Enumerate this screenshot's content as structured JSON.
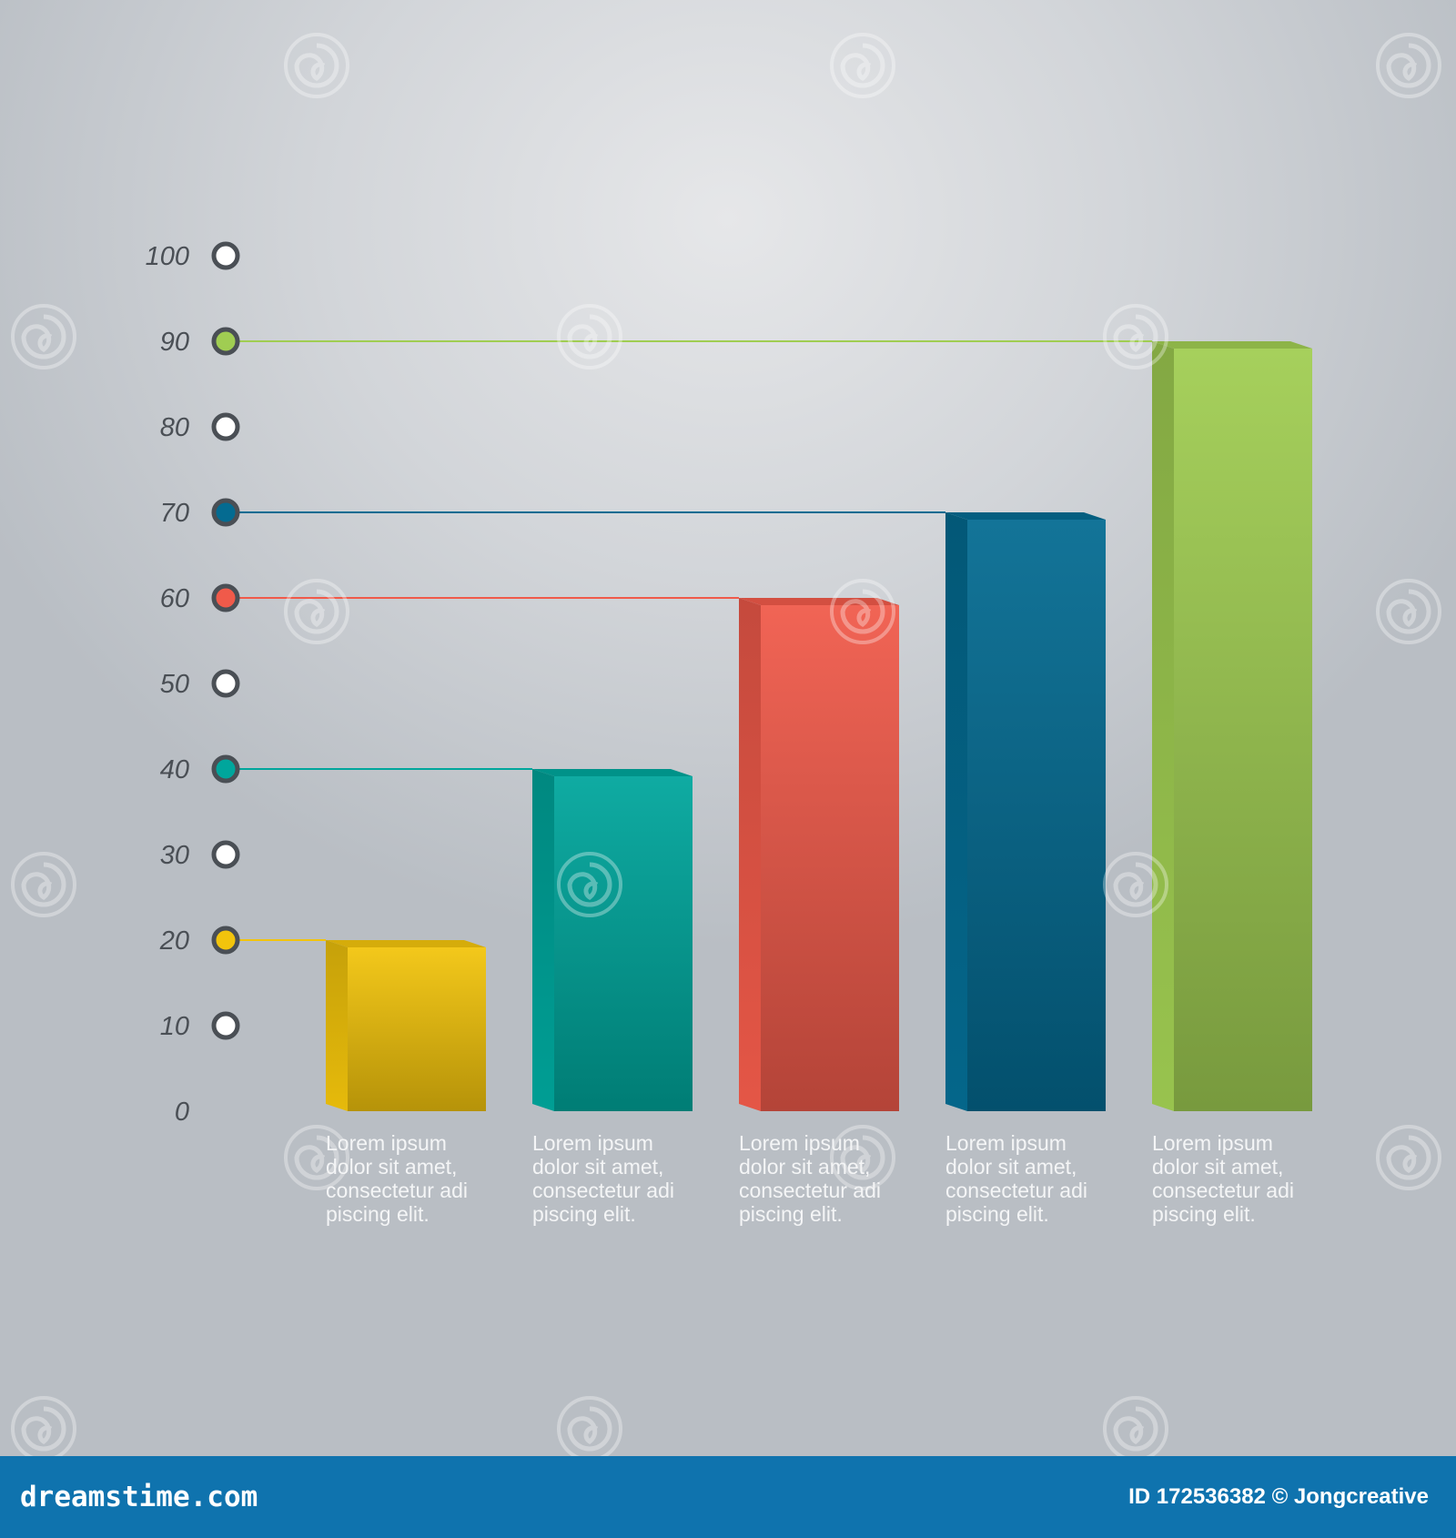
{
  "chart_data": {
    "type": "bar",
    "categories": [
      "Lorem ipsum dolor sit amet, consectetur adi piscing elit.",
      "Lorem ipsum dolor sit amet, consectetur adi piscing elit.",
      "Lorem ipsum dolor sit amet, consectetur adi piscing elit.",
      "Lorem ipsum dolor sit amet, consectetur adi piscing elit.",
      "Lorem ipsum dolor sit amet, consectetur adi piscing elit."
    ],
    "caption_lines": [
      [
        "Lorem ipsum",
        "dolor sit amet,",
        "consectetur adi",
        "piscing elit."
      ],
      [
        "Lorem ipsum",
        "dolor sit amet,",
        "consectetur adi",
        "piscing elit."
      ],
      [
        "Lorem ipsum",
        "dolor sit amet,",
        "consectetur adi",
        "piscing elit."
      ],
      [
        "Lorem ipsum",
        "dolor sit amet,",
        "consectetur adi",
        "piscing elit."
      ],
      [
        "Lorem ipsum",
        "dolor sit amet,",
        "consectetur adi",
        "piscing elit."
      ]
    ],
    "values": [
      20,
      40,
      60,
      70,
      90
    ],
    "colors": [
      "#f2c40c",
      "#00a69c",
      "#f05a4a",
      "#046b91",
      "#a0cd52"
    ],
    "ylim": [
      0,
      100
    ],
    "yticks": [
      0,
      10,
      20,
      30,
      40,
      50,
      60,
      70,
      80,
      90,
      100
    ],
    "grid": false,
    "title": "",
    "xlabel": "",
    "ylabel": ""
  },
  "footer": {
    "brand": "dreamstime.com",
    "id_text": "ID 172536382 © Jongcreative"
  }
}
